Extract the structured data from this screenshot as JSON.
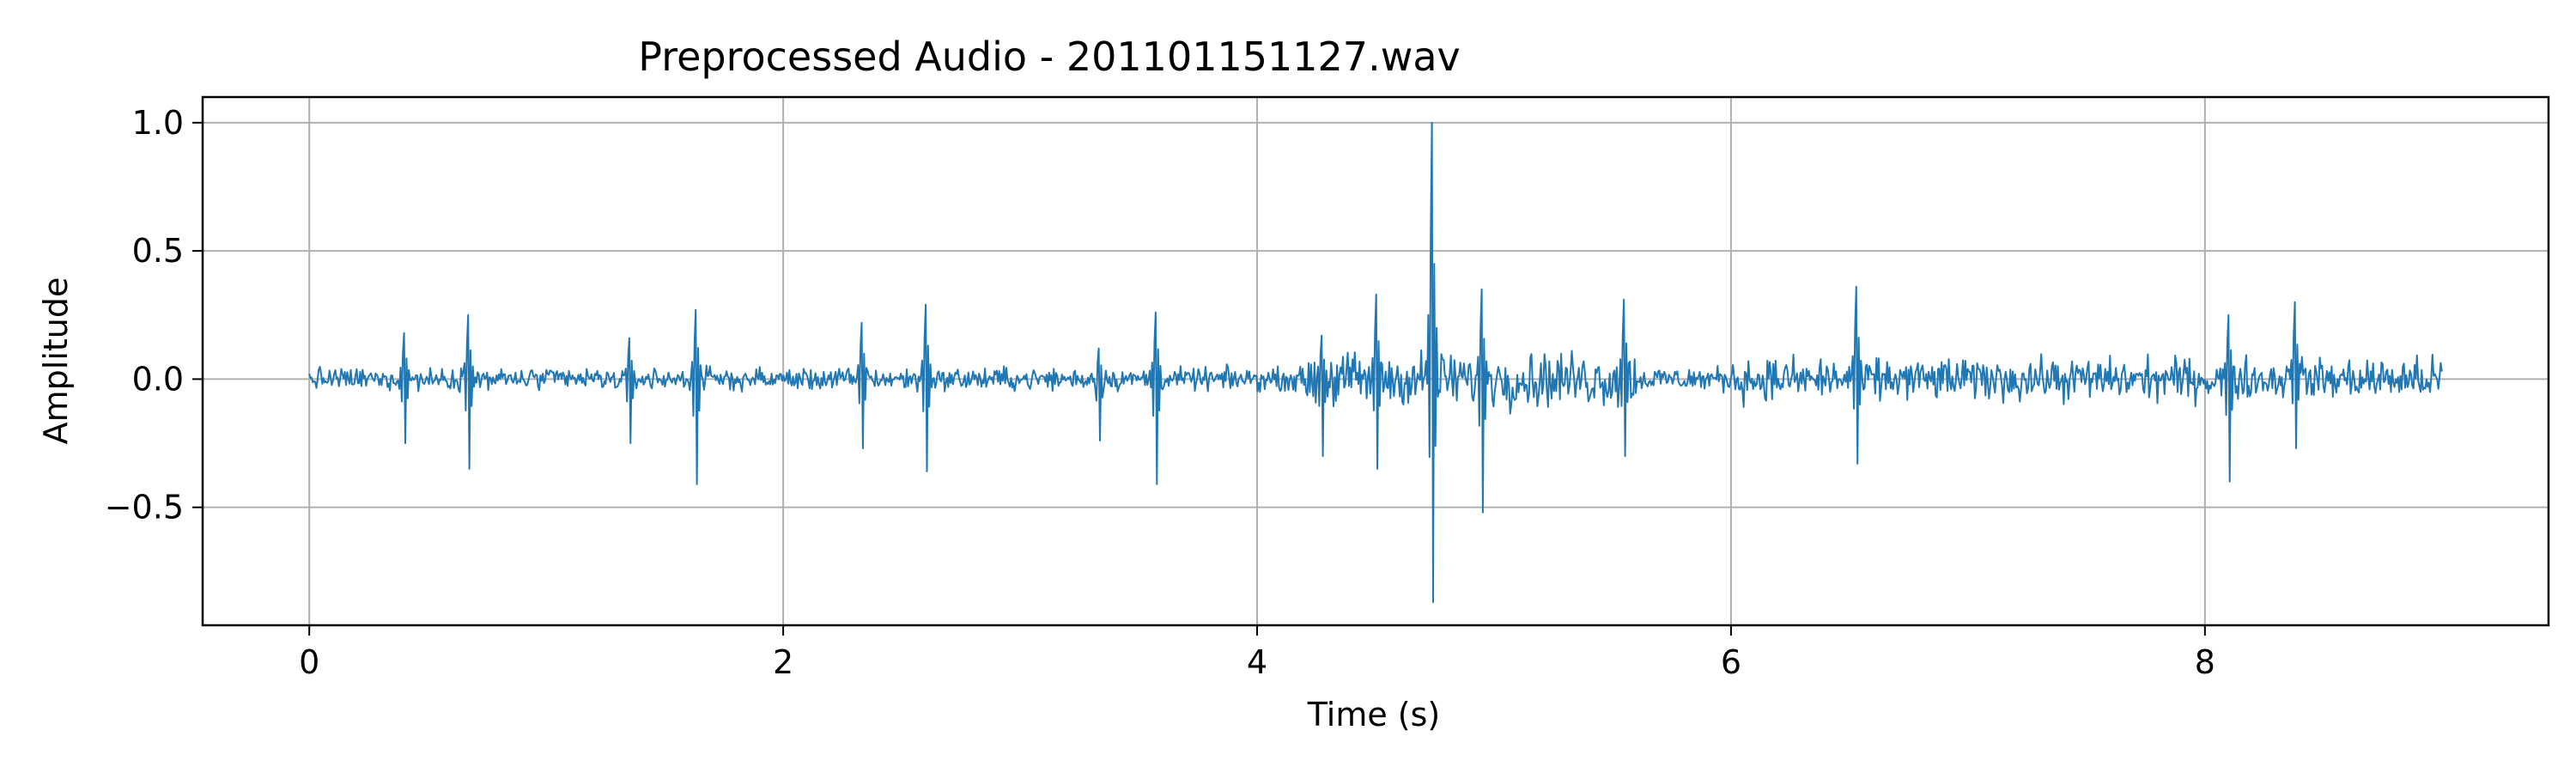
{
  "chart_data": {
    "type": "line",
    "title": "Preprocessed Audio - 201101151127.wav",
    "xlabel": "Time (s)",
    "ylabel": "Amplitude",
    "xlim": [
      -0.45,
      9.45
    ],
    "ylim": [
      -0.96,
      1.1
    ],
    "xticks": [
      0,
      2,
      4,
      6,
      8
    ],
    "xtick_labels": [
      "0",
      "2",
      "4",
      "6",
      "8"
    ],
    "yticks": [
      -0.5,
      0.0,
      0.5,
      1.0
    ],
    "ytick_labels": [
      "−0.5",
      "0.0",
      "0.5",
      "1.0"
    ],
    "grid": true,
    "series": [
      {
        "color": "#1f77b4",
        "duration": 9.0,
        "samples": 1800,
        "noise_segments": [
          {
            "t0": 0.0,
            "t1": 4.2,
            "amp": 0.045
          },
          {
            "t0": 4.2,
            "t1": 5.6,
            "amp": 0.11
          },
          {
            "t0": 5.6,
            "t1": 6.0,
            "amp": 0.05
          },
          {
            "t0": 6.0,
            "t1": 9.0,
            "amp": 0.085
          }
        ],
        "transients": [
          {
            "t": 0.4,
            "max": 0.18,
            "min": -0.25
          },
          {
            "t": 0.67,
            "max": 0.25,
            "min": -0.35
          },
          {
            "t": 1.35,
            "max": 0.16,
            "min": -0.25
          },
          {
            "t": 1.63,
            "max": 0.27,
            "min": -0.41
          },
          {
            "t": 2.33,
            "max": 0.22,
            "min": -0.27
          },
          {
            "t": 2.6,
            "max": 0.29,
            "min": -0.36
          },
          {
            "t": 3.33,
            "max": 0.12,
            "min": -0.24
          },
          {
            "t": 3.57,
            "max": 0.26,
            "min": -0.41
          },
          {
            "t": 4.27,
            "max": 0.17,
            "min": -0.3
          },
          {
            "t": 4.5,
            "max": 0.33,
            "min": -0.35
          },
          {
            "t": 4.74,
            "max": 1.0,
            "min": -0.87
          },
          {
            "t": 4.95,
            "max": 0.35,
            "min": -0.52
          },
          {
            "t": 5.55,
            "max": 0.31,
            "min": -0.3
          },
          {
            "t": 6.53,
            "max": 0.36,
            "min": -0.33
          },
          {
            "t": 8.1,
            "max": 0.25,
            "min": -0.4
          },
          {
            "t": 8.38,
            "max": 0.3,
            "min": -0.27
          }
        ]
      }
    ]
  }
}
